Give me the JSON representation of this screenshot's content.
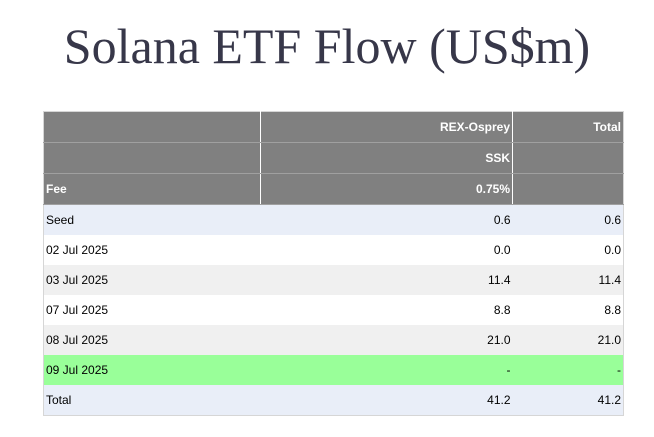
{
  "title": "Solana ETF Flow (US$m)",
  "header": {
    "issuer": "REX-Osprey",
    "total": "Total",
    "ticker": "SSK",
    "fee_label": "Fee",
    "fee": "0.75%"
  },
  "rows": [
    [
      "Seed",
      "0.6",
      "0.6"
    ],
    [
      "02 Jul 2025",
      "0.0",
      "0.0"
    ],
    [
      "03 Jul 2025",
      "11.4",
      "11.4"
    ],
    [
      "07 Jul 2025",
      "8.8",
      "8.8"
    ],
    [
      "08 Jul 2025",
      "21.0",
      "21.0"
    ],
    [
      "09 Jul 2025",
      "-",
      "-"
    ],
    [
      "Total",
      "41.2",
      "41.2"
    ]
  ]
}
